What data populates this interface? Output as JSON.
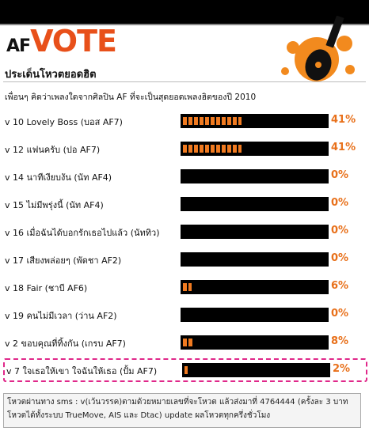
{
  "header": {
    "logo_small": "AF",
    "logo_large": "VOTE"
  },
  "poll": {
    "title": "ประเด็นโหวตยอดฮิต",
    "question": "เพื่อนๆ คิดว่าเพลงใดจากศิลปิน AF ที่จะเป็นสุดยอดเพลงฮิตของปี 2010",
    "items": [
      {
        "label": "v 10 Lovely Boss (บอส AF7)",
        "value": 41,
        "value_label": "41%"
      },
      {
        "label": "v 12 แฟนครับ (ปอ AF7)",
        "value": 41,
        "value_label": "41%"
      },
      {
        "label": "v 14 นาทีเงียบงัน (นัท AF4)",
        "value": 0,
        "value_label": "0%"
      },
      {
        "label": "v 15 ไม่มีพรุ่งนี้ (นัท AF4)",
        "value": 0,
        "value_label": "0%"
      },
      {
        "label": "v 16 เมื่อฉันได้บอกรักเธอไปแล้ว (นัททิว)",
        "value": 0,
        "value_label": "0%"
      },
      {
        "label": "v 17 เสียงพล่อยๆ (พัดชา AF2)",
        "value": 0,
        "value_label": "0%"
      },
      {
        "label": "v 18 Fair (ชาบี AF6)",
        "value": 6,
        "value_label": "6%"
      },
      {
        "label": "v 19 คนไม่มีเวลา (ว่าน AF2)",
        "value": 0,
        "value_label": "0%"
      },
      {
        "label": "v 2 ขอบคุณที่ทิ้งกัน (เกรบ AF7)",
        "value": 8,
        "value_label": "8%"
      },
      {
        "label": "v 7 ใจเธอให้เขา ใจฉันให้เธอ (ปั้ม AF7)",
        "value": 2,
        "value_label": "2%",
        "highlighted": true
      }
    ]
  },
  "footer": {
    "lines": [
      "โหวตผ่านทาง sms : v(เว้นวรรค)ตามด้วยหมายเลขที่จะโหวต แล้วส่งมาที่ 4764444 (ครั้งละ 3 บาท",
      "โหวตได้ทั้งระบบ TrueMove, AIS และ Dtac) update ผลโหวตทุกครึ่งชั่วโมง"
    ]
  }
}
